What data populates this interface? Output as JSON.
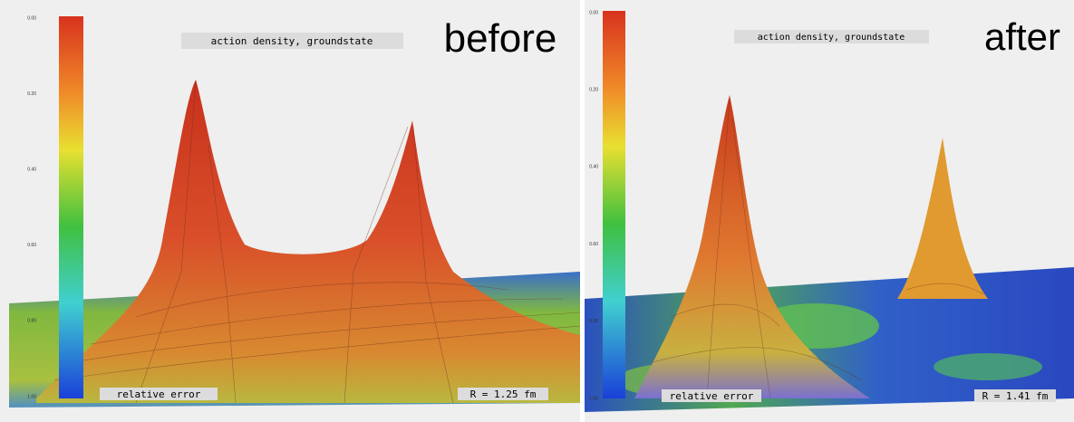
{
  "panels": [
    {
      "label": "before",
      "plot_title": "action density, groundstate",
      "colorbar_ticks": [
        "0.00",
        "0.20",
        "0.40",
        "0.60",
        "0.80",
        "1.00"
      ],
      "footer_left": "relative error",
      "footer_right": "R = 1.25 fm"
    },
    {
      "label": "after",
      "plot_title": "action density, groundstate",
      "colorbar_ticks": [
        "0.00",
        "0.20",
        "0.40",
        "0.60",
        "0.80",
        "1.00"
      ],
      "footer_left": "relative error",
      "footer_right": "R = 1.41 fm"
    }
  ]
}
